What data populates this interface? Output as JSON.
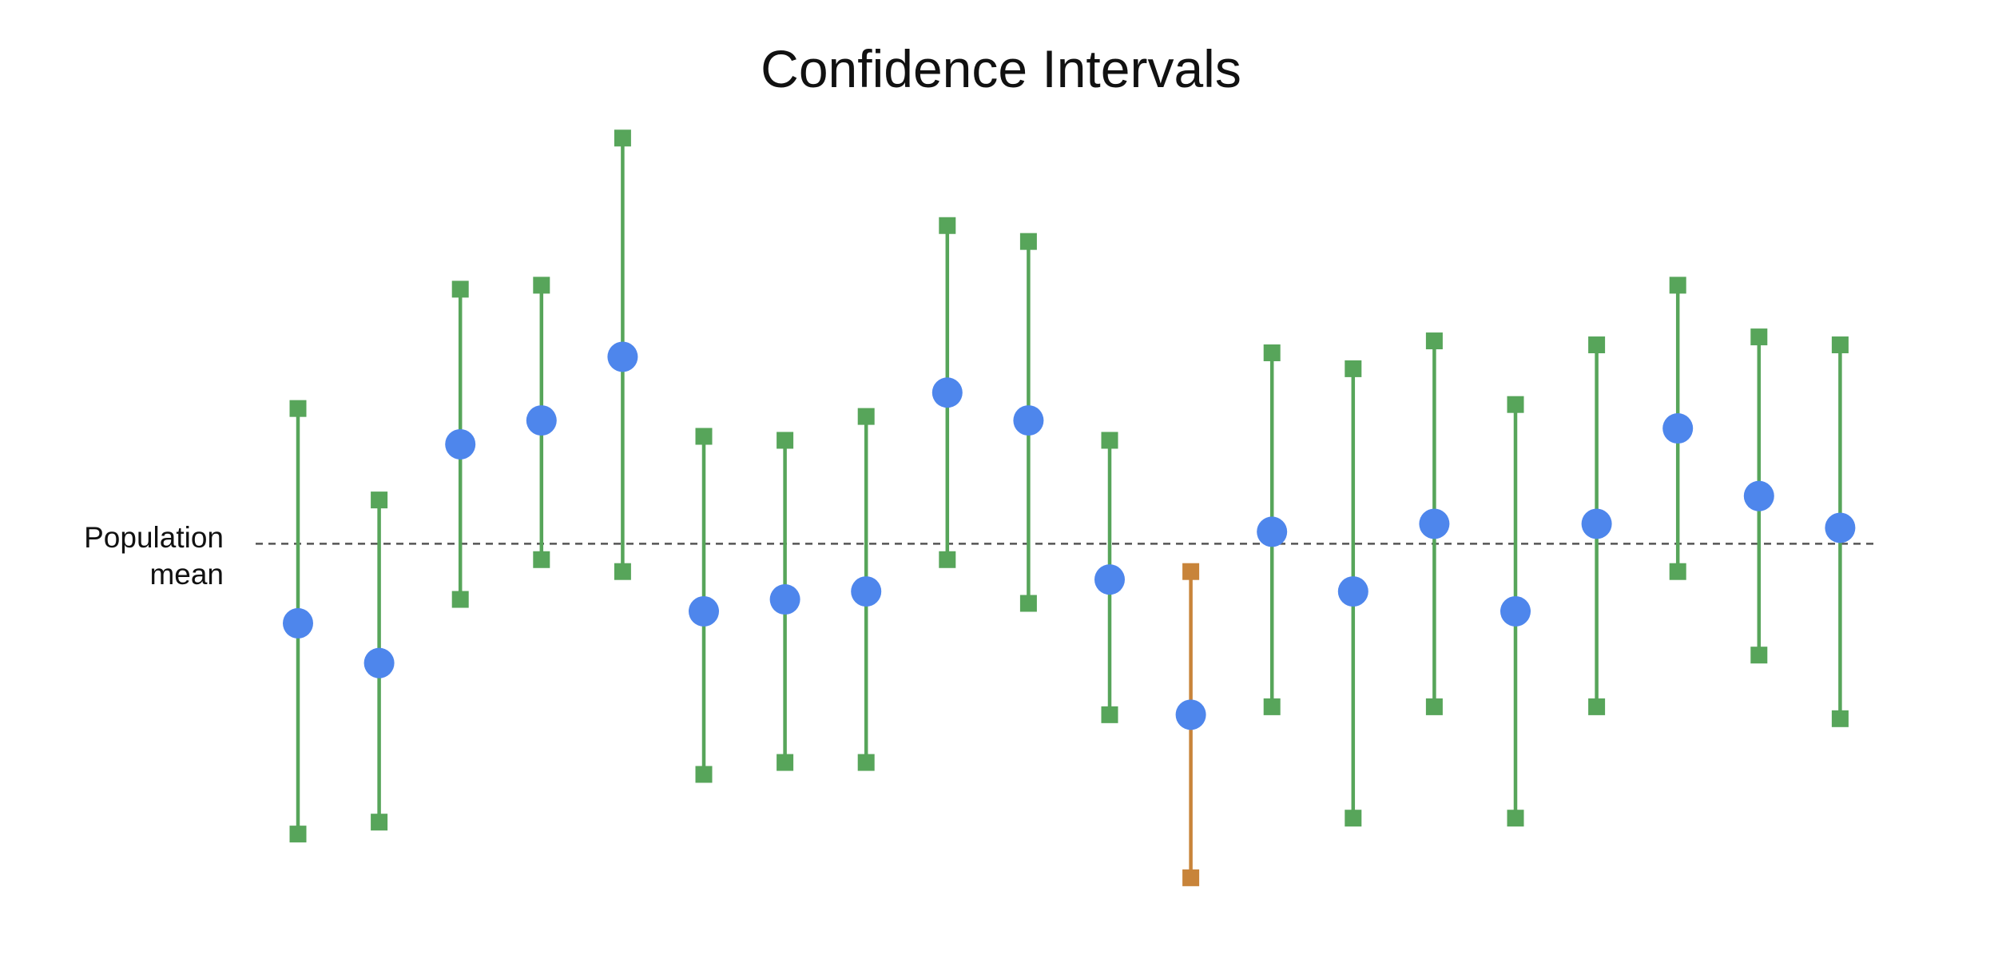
{
  "chart_data": {
    "type": "scatter",
    "title": "Confidence Intervals",
    "reference_line": {
      "label_line1": "Population",
      "label_line2": "mean",
      "value": 0,
      "style": "dashed",
      "color": "#555555"
    },
    "ylim": [
      -1.0,
      1.12
    ],
    "grid": false,
    "legend": "none",
    "colors": {
      "interval": "#57a55a",
      "interval_miss": "#c8843a",
      "point": "#4e86ec"
    },
    "intervals": [
      {
        "index": 1,
        "mean": -0.2,
        "lower": -0.73,
        "upper": 0.34,
        "contains_mean": true
      },
      {
        "index": 2,
        "mean": -0.3,
        "lower": -0.7,
        "upper": 0.11,
        "contains_mean": true
      },
      {
        "index": 3,
        "mean": 0.25,
        "lower": -0.14,
        "upper": 0.64,
        "contains_mean": true
      },
      {
        "index": 4,
        "mean": 0.31,
        "lower": -0.04,
        "upper": 0.65,
        "contains_mean": true
      },
      {
        "index": 5,
        "mean": 0.47,
        "lower": -0.07,
        "upper": 1.02,
        "contains_mean": true
      },
      {
        "index": 6,
        "mean": -0.17,
        "lower": -0.58,
        "upper": 0.27,
        "contains_mean": true
      },
      {
        "index": 7,
        "mean": -0.14,
        "lower": -0.55,
        "upper": 0.26,
        "contains_mean": true
      },
      {
        "index": 8,
        "mean": -0.12,
        "lower": -0.55,
        "upper": 0.32,
        "contains_mean": true
      },
      {
        "index": 9,
        "mean": 0.38,
        "lower": -0.04,
        "upper": 0.8,
        "contains_mean": true
      },
      {
        "index": 10,
        "mean": 0.31,
        "lower": -0.15,
        "upper": 0.76,
        "contains_mean": true
      },
      {
        "index": 11,
        "mean": -0.09,
        "lower": -0.43,
        "upper": 0.26,
        "contains_mean": true
      },
      {
        "index": 12,
        "mean": -0.43,
        "lower": -0.84,
        "upper": -0.07,
        "contains_mean": false
      },
      {
        "index": 13,
        "mean": 0.03,
        "lower": -0.41,
        "upper": 0.48,
        "contains_mean": true
      },
      {
        "index": 14,
        "mean": -0.12,
        "lower": -0.69,
        "upper": 0.44,
        "contains_mean": true
      },
      {
        "index": 15,
        "mean": 0.05,
        "lower": -0.41,
        "upper": 0.51,
        "contains_mean": true
      },
      {
        "index": 16,
        "mean": -0.17,
        "lower": -0.69,
        "upper": 0.35,
        "contains_mean": true
      },
      {
        "index": 17,
        "mean": 0.05,
        "lower": -0.41,
        "upper": 0.5,
        "contains_mean": true
      },
      {
        "index": 18,
        "mean": 0.29,
        "lower": -0.07,
        "upper": 0.65,
        "contains_mean": true
      },
      {
        "index": 19,
        "mean": 0.12,
        "lower": -0.28,
        "upper": 0.52,
        "contains_mean": true
      },
      {
        "index": 20,
        "mean": 0.04,
        "lower": -0.44,
        "upper": 0.5,
        "contains_mean": true
      }
    ]
  }
}
